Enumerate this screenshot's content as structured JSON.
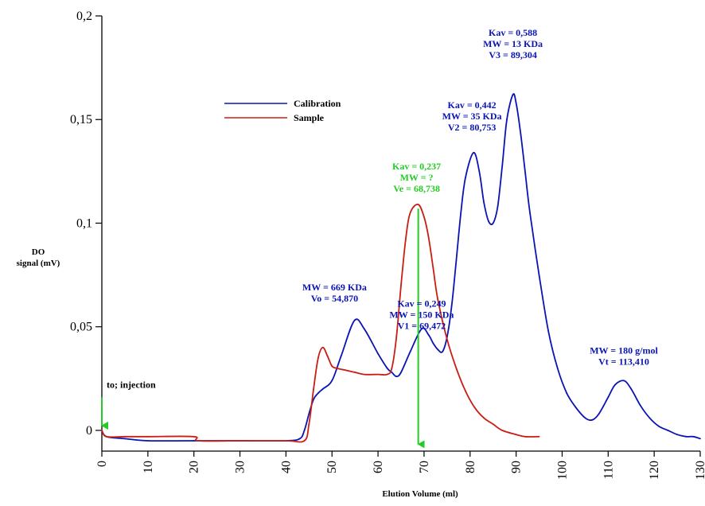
{
  "chart_data": {
    "type": "line",
    "xlabel": "Elution Volume (ml)",
    "ylabel_lines": [
      "DO",
      "signal (mV)"
    ],
    "xlim": [
      0,
      130
    ],
    "ylim": [
      -0.01,
      0.2
    ],
    "xticks": [
      0,
      10,
      20,
      30,
      40,
      50,
      60,
      70,
      80,
      90,
      100,
      110,
      120,
      130
    ],
    "yticks": [
      0,
      0.05,
      0.1,
      0.15,
      0.2
    ],
    "ytick_labels": [
      "0",
      "0,05",
      "0,1",
      "0,15",
      "0,2"
    ],
    "legend": {
      "placement": "top-left"
    },
    "series": [
      {
        "name": "Calibration",
        "color": "#0a14b4",
        "x": [
          0,
          1,
          5,
          10,
          20,
          30,
          40,
          43,
          44,
          45,
          46,
          47,
          48,
          50,
          52,
          54.87,
          57,
          60,
          62,
          63,
          64,
          65,
          67,
          69.47,
          71,
          72,
          73,
          74,
          75,
          76,
          77,
          78,
          79,
          80.75,
          82,
          83,
          84,
          85,
          86,
          87,
          88,
          89.3,
          90,
          91,
          92,
          93,
          95,
          97,
          99,
          101,
          103,
          105,
          106.5,
          108,
          110,
          111.5,
          113.41,
          115,
          117,
          119,
          121,
          123,
          125,
          127,
          128.5,
          130
        ],
        "y": [
          0.0,
          -0.003,
          -0.004,
          -0.005,
          -0.005,
          -0.005,
          -0.005,
          -0.004,
          0.0,
          0.008,
          0.015,
          0.018,
          0.02,
          0.024,
          0.036,
          0.053,
          0.049,
          0.037,
          0.03,
          0.028,
          0.026,
          0.028,
          0.038,
          0.049,
          0.046,
          0.042,
          0.039,
          0.038,
          0.045,
          0.06,
          0.082,
          0.105,
          0.122,
          0.134,
          0.125,
          0.11,
          0.101,
          0.1,
          0.108,
          0.128,
          0.15,
          0.162,
          0.158,
          0.143,
          0.124,
          0.105,
          0.075,
          0.048,
          0.03,
          0.018,
          0.011,
          0.006,
          0.005,
          0.008,
          0.016,
          0.022,
          0.024,
          0.02,
          0.012,
          0.006,
          0.002,
          0.0,
          -0.002,
          -0.003,
          -0.003,
          -0.004
        ]
      },
      {
        "name": "Sample",
        "color": "#c81e14",
        "x": [
          0,
          1,
          5,
          10,
          20,
          21,
          30,
          40,
          44,
          45,
          46,
          47,
          48,
          49,
          50,
          51,
          53,
          55,
          57,
          60,
          62,
          63,
          64,
          65,
          66,
          67,
          68.74,
          70,
          71,
          72,
          73,
          75,
          77,
          79,
          81,
          83,
          85,
          87,
          90,
          92,
          95
        ],
        "y": [
          0.0,
          -0.003,
          -0.003,
          -0.003,
          -0.003,
          -0.005,
          -0.005,
          -0.005,
          -0.005,
          0.003,
          0.02,
          0.035,
          0.04,
          0.036,
          0.031,
          0.03,
          0.029,
          0.028,
          0.027,
          0.027,
          0.027,
          0.03,
          0.045,
          0.07,
          0.092,
          0.105,
          0.109,
          0.103,
          0.093,
          0.078,
          0.063,
          0.044,
          0.03,
          0.019,
          0.011,
          0.006,
          0.003,
          0.0,
          -0.002,
          -0.003,
          -0.003
        ]
      }
    ],
    "annotations": [
      {
        "lines": [
          "Kav = 0,588",
          "MW = 13 KDa",
          "V3 = 89,304"
        ],
        "x": 89.3,
        "y": 0.162,
        "color": "#0a14b4"
      },
      {
        "lines": [
          "Kav = 0,442",
          "MW = 35 KDa",
          "V2 = 80,753"
        ],
        "x": 80.75,
        "y": 0.134,
        "color": "#0a14b4"
      },
      {
        "lines": [
          "Kav = 0,237",
          "MW = ?",
          "Ve = 68,738"
        ],
        "x": 68.74,
        "y": 0.109,
        "color": "#22cc22"
      },
      {
        "lines": [
          "MW = 669 KDa",
          "Vo = 54,870"
        ],
        "x": 54.87,
        "y": 0.053,
        "color": "#0a14b4"
      },
      {
        "lines": [
          "Kav = 0,249",
          "MW = 150 KDa",
          "V1 = 69,472"
        ],
        "x": 69.47,
        "y": 0.049,
        "color": "#0a14b4"
      },
      {
        "lines": [
          "MW = 180 g/mol",
          "Vt = 113,410"
        ],
        "x": 113.41,
        "y": 0.024,
        "color": "#0a14b4"
      },
      {
        "lines": [
          "to; injection"
        ],
        "x": 0,
        "y": 0.016,
        "color": "#000000"
      }
    ],
    "markers": [
      {
        "name": "injection-arrow",
        "x": 0,
        "y_from": 0.016,
        "y_to": 0.0,
        "color": "#22cc22"
      },
      {
        "name": "ve-arrow",
        "x": 68.74,
        "y_from": 0.107,
        "y_to": -0.009,
        "color": "#22cc22"
      }
    ]
  }
}
